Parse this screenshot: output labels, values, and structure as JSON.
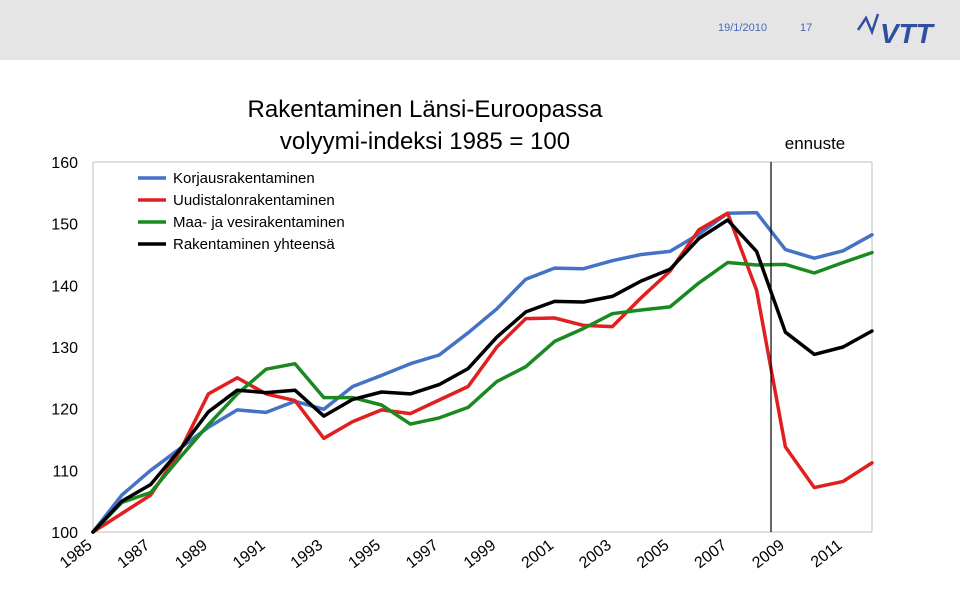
{
  "header": {
    "date": "19/1/2010",
    "page_number": "17",
    "logo_text": "VTT"
  },
  "colors": {
    "header_band": "#e5e5e5",
    "header_text": "#4a67b8",
    "logo": "#2f4f9f"
  },
  "chart_data": {
    "type": "line",
    "title_lines": [
      "Rakentaminen Länsi-Euroopassa",
      "volyymi-indeksi 1985 = 100"
    ],
    "xlabel": "",
    "ylabel": "",
    "x": [
      1985,
      1986,
      1987,
      1988,
      1989,
      1990,
      1991,
      1992,
      1993,
      1994,
      1995,
      1996,
      1997,
      1998,
      1999,
      2000,
      2001,
      2002,
      2003,
      2004,
      2005,
      2006,
      2007,
      2008,
      2009,
      2010,
      2011,
      2012
    ],
    "x_tick_labels": [
      "1985",
      "1987",
      "1989",
      "1991",
      "1993",
      "1995",
      "1997",
      "1999",
      "2001",
      "2003",
      "2005",
      "2007",
      "2009",
      "2011"
    ],
    "ylim": [
      100,
      160
    ],
    "y_ticks": [
      100,
      110,
      120,
      130,
      140,
      150,
      160
    ],
    "grid": false,
    "legend_position": "top-left",
    "annotation": {
      "label": "ennuste",
      "x": 2008.5
    },
    "series": [
      {
        "name": "Korjausrakentaminen",
        "color": "#4472c4",
        "values": [
          100,
          106,
          110,
          113.5,
          117,
          119.8,
          119.4,
          121.2,
          119.9,
          123.6,
          125.4,
          127.3,
          128.7,
          132.3,
          136.2,
          141,
          142.8,
          142.7,
          144,
          145,
          145.5,
          148.3,
          151.7,
          151.8,
          145.8,
          144.4,
          145.6,
          148.2
        ]
      },
      {
        "name": "Uudistalonrakentaminen",
        "color": "#e02020",
        "values": [
          100,
          103,
          106,
          113,
          122.4,
          125,
          122.4,
          121.3,
          115.2,
          117.9,
          119.8,
          119.2,
          121.4,
          123.6,
          130,
          134.6,
          134.7,
          133.5,
          133.3,
          138,
          142.3,
          149,
          151.7,
          139.2,
          113.8,
          107.2,
          108.2,
          111.2
        ]
      },
      {
        "name": "Maa- ja vesirakentaminen",
        "color": "#1a8a20",
        "values": [
          100,
          104.8,
          106.4,
          112,
          117.4,
          122.4,
          126.4,
          127.3,
          121.8,
          121.8,
          120.6,
          117.5,
          118.5,
          120.2,
          124.4,
          126.8,
          130.9,
          133,
          135.4,
          136,
          136.5,
          140.4,
          143.7,
          143.3,
          143.4,
          142,
          143.7,
          145.3
        ]
      },
      {
        "name": "Rakentaminen yhteensä",
        "color": "#000000",
        "values": [
          100,
          105,
          107.7,
          113.3,
          119.5,
          123,
          122.6,
          123,
          118.8,
          121.5,
          122.7,
          122.4,
          123.9,
          126.5,
          131.6,
          135.7,
          137.4,
          137.3,
          138.2,
          140.7,
          142.6,
          147.6,
          150.6,
          145.5,
          132.4,
          128.8,
          130,
          132.6
        ]
      }
    ]
  }
}
